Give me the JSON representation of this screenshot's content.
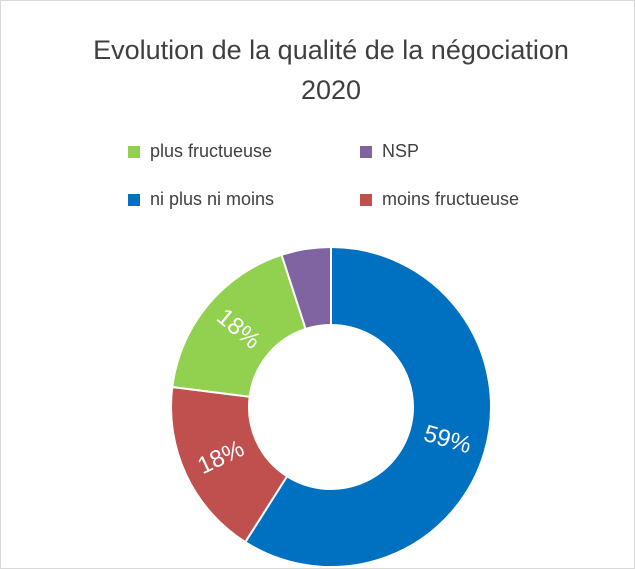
{
  "chart_data": {
    "type": "donut",
    "title": "Evolution de la qualité de la négociation 2020",
    "categories": [
      "ni plus ni moins",
      "moins fructueuse",
      "plus fructueuse",
      "NSP"
    ],
    "values": [
      59,
      18,
      18,
      5
    ],
    "value_labels": [
      "59%",
      "18%",
      "18%",
      null
    ],
    "colors": [
      "#0070c0",
      "#c0504d",
      "#92d050",
      "#8064a2"
    ],
    "legend": "top"
  }
}
